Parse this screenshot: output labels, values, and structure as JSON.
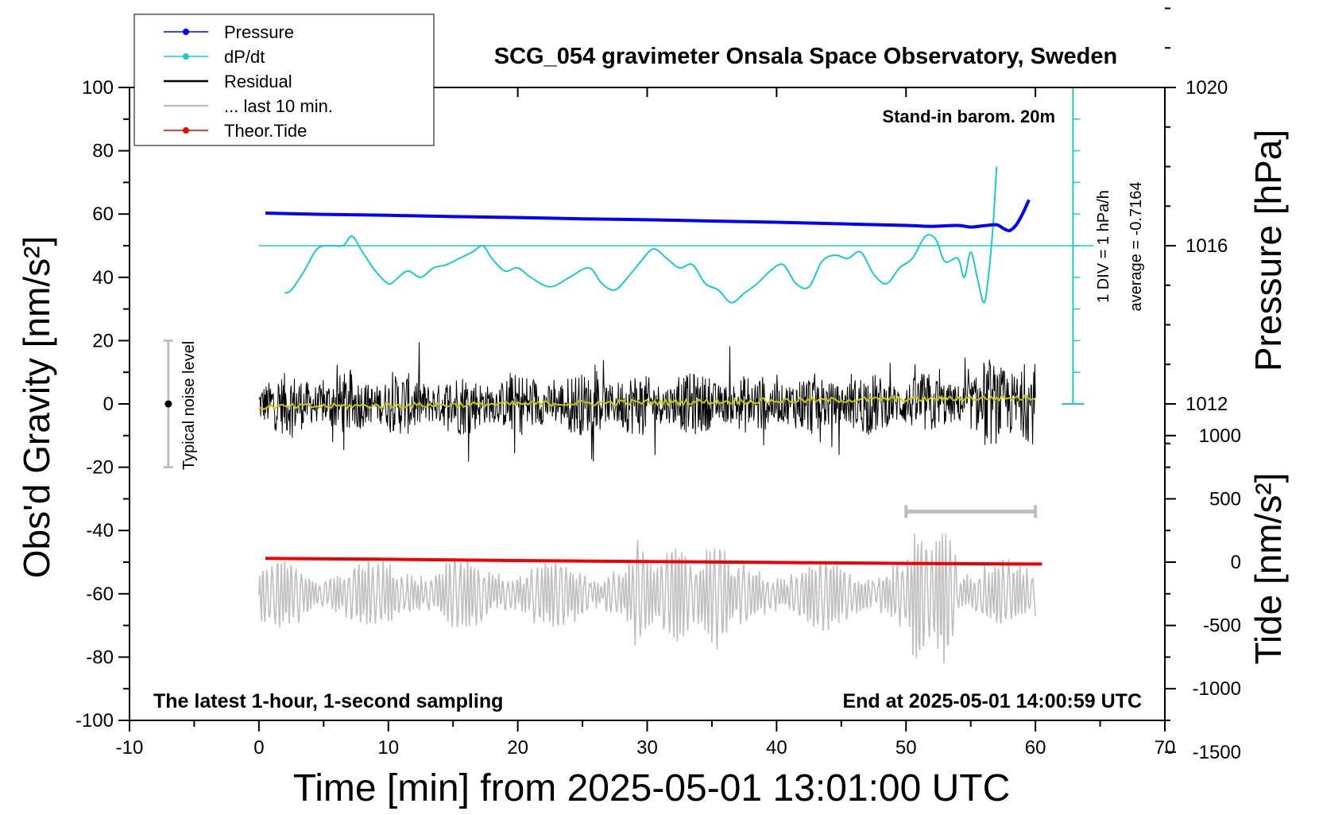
{
  "chart_data": {
    "type": "line",
    "title": "SCG_054 gravimeter Onsala Space Observatory, Sweden",
    "xlabel": "Time [min] from 2025-05-01 13:01:00 UTC",
    "ylabel_left": "Obs'd Gravity [nm/s²]",
    "ylabel_pressure": "Pressure [hPa]",
    "ylabel_tide": "Tide [nm/s²]",
    "xlim": [
      -10,
      70
    ],
    "ylim": [
      -100,
      100
    ],
    "x_ticks": [
      -10,
      0,
      10,
      20,
      30,
      40,
      50,
      60,
      70
    ],
    "y_ticks": [
      -100,
      -80,
      -60,
      -40,
      -20,
      0,
      20,
      40,
      60,
      80,
      100
    ],
    "pressure_ticks": [
      1012,
      1016,
      1020
    ],
    "tide_ticks": [
      -1500,
      -1000,
      -500,
      0,
      500,
      1000
    ],
    "grid": false,
    "legend_position": "top-left",
    "annotations": {
      "barometer": "Stand-in barom. 20m",
      "div_label": "1 DIV = 1 hPa/h",
      "average_label": "average = -0.7164",
      "noise_label": "Typical noise level",
      "bottom_left": "The latest 1-hour, 1-second sampling",
      "bottom_right": "End at 2025-05-01 14:00:59 UTC"
    },
    "noise_bar": {
      "x": -7,
      "center": 0,
      "low": -20,
      "high": 20
    },
    "last10_bar": {
      "x_start": 50,
      "x_end": 60,
      "y": -34
    },
    "dpdt_reference": {
      "y": 50,
      "x_start": 0,
      "x_end": 64.5
    },
    "series": [
      {
        "name": "Pressure",
        "color": "#0000ff",
        "x": [
          0.5,
          5,
          10,
          15,
          20,
          25,
          30,
          35,
          40,
          45,
          50,
          52,
          54,
          55,
          56,
          57,
          57.5,
          58,
          58.5,
          59,
          59.5
        ],
        "y": [
          60.3,
          59.9,
          59.6,
          59.2,
          58.9,
          58.5,
          58.2,
          57.8,
          57.4,
          56.9,
          56.4,
          56.1,
          56.4,
          55.9,
          56.3,
          56.6,
          55.5,
          54.8,
          56.5,
          60.0,
          64.5
        ]
      },
      {
        "name": "dP/dt",
        "color": "#22c8c8",
        "x": [
          2,
          2.5,
          3.5,
          4.5,
          5.5,
          6.5,
          7.2,
          8,
          9,
          10,
          10.5,
          11.5,
          12.5,
          13.5,
          14.5,
          15.5,
          16.5,
          17.3,
          18,
          19,
          20,
          21,
          22.5,
          24,
          25.5,
          26.5,
          27.5,
          28.5,
          29.5,
          30.5,
          31.5,
          32.5,
          33.5,
          34.5,
          35.5,
          36.5,
          37.5,
          38.5,
          39.5,
          40.5,
          41.5,
          42.5,
          43.5,
          44.5,
          45.5,
          46.5,
          47.5,
          48.5,
          49.5,
          50.5,
          51.5,
          52.3,
          53,
          54,
          54.5,
          55,
          55.5,
          56,
          56.3,
          56.7,
          57
        ],
        "y": [
          35,
          36,
          42,
          49,
          50,
          50,
          53,
          48,
          42,
          38,
          39,
          42,
          40,
          43,
          44,
          46,
          48,
          50,
          46,
          42,
          43,
          40,
          37,
          40,
          43,
          38,
          36,
          40,
          45,
          49,
          46,
          43,
          44,
          38,
          36,
          32,
          35,
          38,
          42,
          44,
          38,
          37,
          45,
          47,
          46,
          48,
          41,
          38,
          43,
          46,
          53,
          52,
          45,
          46,
          40,
          48,
          40,
          32,
          38,
          55,
          75
        ]
      },
      {
        "name": "Residual",
        "color": "#000000",
        "x": [
          0,
          60
        ],
        "y": [
          0,
          0
        ],
        "range": [
          -25,
          22
        ]
      },
      {
        "name": "... last 10 min.",
        "color": "#bfbfbf",
        "x": [
          0,
          60
        ],
        "y": [
          -60,
          -60
        ],
        "range": [
          -88,
          -41
        ]
      },
      {
        "name": "Theor.Tide",
        "color": "#ee0000",
        "x": [
          0.5,
          10,
          20,
          30,
          40,
          50,
          60.5
        ],
        "y": [
          -48.8,
          -49.1,
          -49.5,
          -49.8,
          -50.1,
          -50.4,
          -50.6
        ]
      },
      {
        "color": "#c8c800",
        "x": [
          0,
          60
        ],
        "y": [
          -1,
          2
        ]
      }
    ],
    "legend": [
      {
        "label": "Pressure",
        "color": "#0000ff",
        "marker": true
      },
      {
        "label": "dP/dt",
        "color": "#22c8c8",
        "marker": true
      },
      {
        "label": "Residual",
        "color": "#000000",
        "marker": false
      },
      {
        "label": "... last 10 min.",
        "color": "#bfbfbf",
        "marker": false
      },
      {
        "label": "Theor.Tide",
        "color": "#ee0000",
        "marker": true
      }
    ]
  }
}
